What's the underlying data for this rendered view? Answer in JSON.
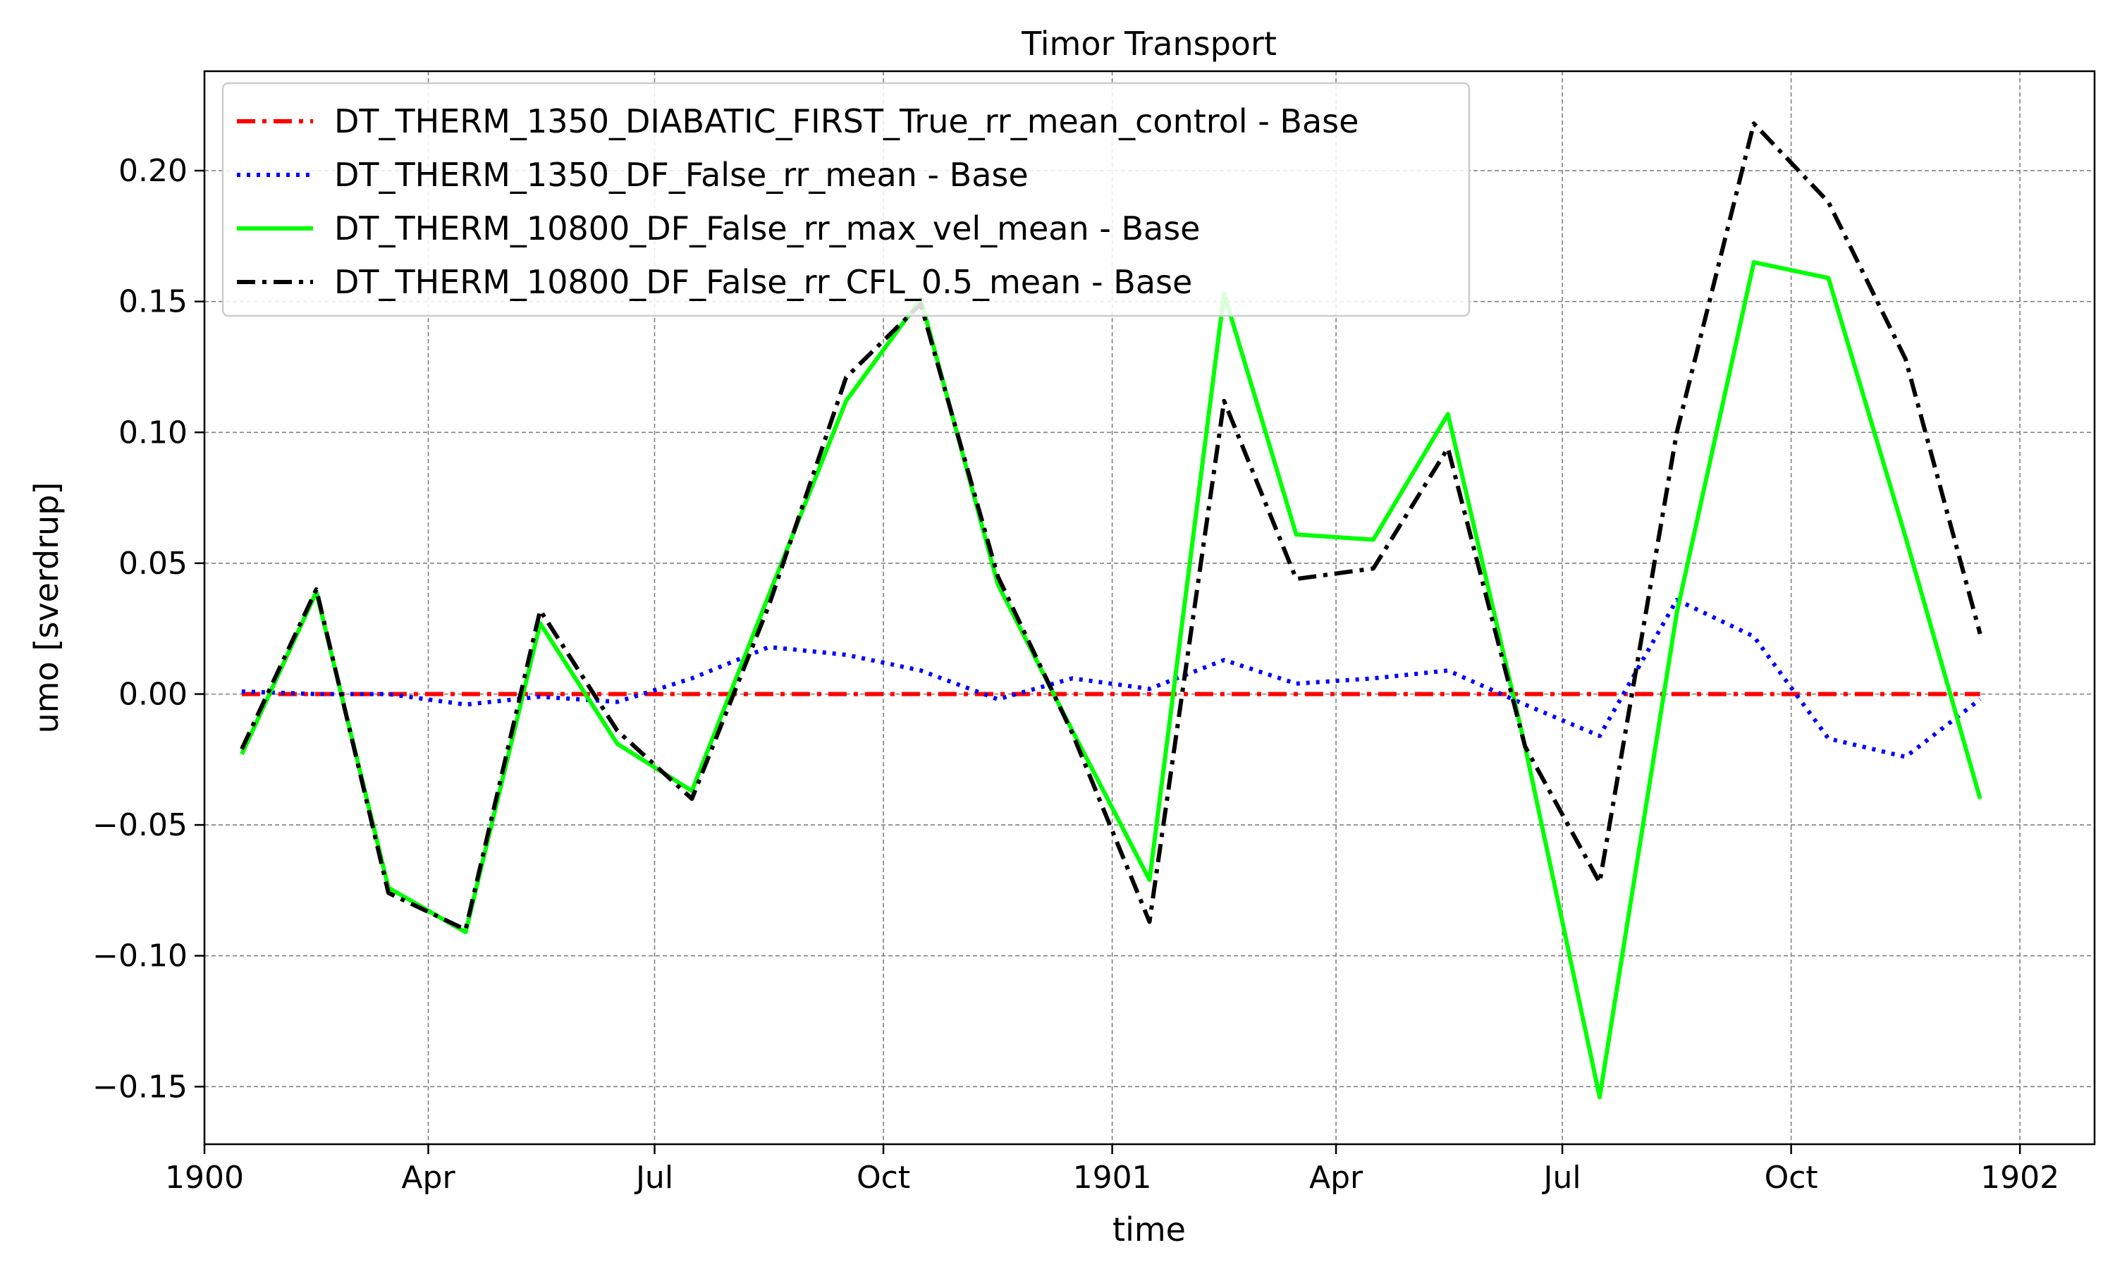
{
  "chart_data": {
    "type": "line",
    "title": "Timor Transport",
    "xlabel": "time",
    "ylabel": "umo [sverdrup]",
    "x_ticks": [
      "1900",
      "Apr",
      "Jul",
      "Oct",
      "1901",
      "Apr",
      "Jul",
      "Oct",
      "1902"
    ],
    "y_ticks": [
      "−0.15",
      "−0.10",
      "−0.05",
      "0.00",
      "0.05",
      "0.10",
      "0.15",
      "0.20"
    ],
    "xlim": [
      "1900-01-01",
      "1902-01-31"
    ],
    "ylim": [
      -0.172,
      0.238
    ],
    "grid": true,
    "legend_position": "top-left",
    "x": [
      "1900-01-16",
      "1900-02-15",
      "1900-03-16",
      "1900-04-16",
      "1900-05-16",
      "1900-06-16",
      "1900-07-16",
      "1900-08-16",
      "1900-09-16",
      "1900-10-16",
      "1900-11-16",
      "1900-12-16",
      "1901-01-16",
      "1901-02-15",
      "1901-03-16",
      "1901-04-16",
      "1901-05-16",
      "1901-06-16",
      "1901-07-16",
      "1901-08-16",
      "1901-09-16",
      "1901-10-16",
      "1901-11-16",
      "1901-12-16"
    ],
    "series": [
      {
        "name": "DT_THERM_1350_DIABATIC_FIRST_True_rr_mean_control - Base",
        "color": "#ff0000",
        "style": "dashdot",
        "values": [
          0,
          0,
          0,
          0,
          0,
          0,
          0,
          0,
          0,
          0,
          0,
          0,
          0,
          0,
          0,
          0,
          0,
          0,
          0,
          0,
          0,
          0,
          0,
          0
        ]
      },
      {
        "name": "DT_THERM_1350_DF_False_rr_mean - Base",
        "color": "#0000ff",
        "style": "dotted",
        "values": [
          0.001,
          0.0,
          0.0,
          -0.004,
          -0.001,
          -0.003,
          0.006,
          0.018,
          0.015,
          0.009,
          -0.002,
          0.006,
          0.002,
          0.013,
          0.004,
          0.006,
          0.009,
          -0.004,
          -0.016,
          0.036,
          0.022,
          -0.017,
          -0.024,
          -0.002
        ]
      },
      {
        "name": "DT_THERM_10800_DF_False_rr_max_vel_mean - Base",
        "color": "#00ff00",
        "style": "solid",
        "values": [
          -0.023,
          0.039,
          -0.074,
          -0.091,
          0.027,
          -0.019,
          -0.037,
          0.038,
          0.112,
          0.151,
          0.042,
          -0.014,
          -0.071,
          0.153,
          0.061,
          0.059,
          0.107,
          -0.02,
          -0.154,
          0.031,
          0.165,
          0.159,
          0.06,
          -0.04
        ]
      },
      {
        "name": "DT_THERM_10800_DF_False_rr_CFL_0.5_mean - Base",
        "color": "#000000",
        "style": "dashdot",
        "values": [
          -0.021,
          0.04,
          -0.076,
          -0.09,
          0.032,
          -0.014,
          -0.04,
          0.034,
          0.121,
          0.149,
          0.045,
          -0.015,
          -0.087,
          0.112,
          0.044,
          0.048,
          0.094,
          -0.02,
          -0.072,
          0.1,
          0.218,
          0.188,
          0.128,
          0.023
        ]
      }
    ]
  }
}
